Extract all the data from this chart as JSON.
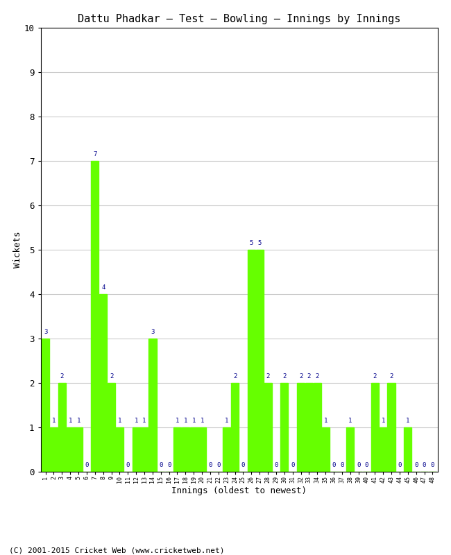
{
  "title": "Dattu Phadkar – Test – Bowling – Innings by Innings",
  "xlabel": "Innings (oldest to newest)",
  "ylabel": "Wickets",
  "ylim": [
    0,
    10
  ],
  "yticks": [
    0,
    1,
    2,
    3,
    4,
    5,
    6,
    7,
    8,
    9,
    10
  ],
  "bar_color": "#66ff00",
  "label_color": "#00008B",
  "footer": "(C) 2001-2015 Cricket Web (www.cricketweb.net)",
  "innings": [
    1,
    2,
    3,
    4,
    5,
    6,
    7,
    8,
    9,
    10,
    11,
    12,
    13,
    14,
    15,
    16,
    17,
    18,
    19,
    20,
    21,
    22,
    23,
    24,
    25,
    26,
    27,
    28,
    29,
    30,
    31,
    32,
    33,
    34,
    35,
    36,
    37,
    38,
    39,
    40,
    41,
    42,
    43,
    44,
    45,
    46,
    47,
    48
  ],
  "wickets": [
    3,
    1,
    2,
    1,
    1,
    0,
    7,
    4,
    2,
    1,
    0,
    1,
    1,
    3,
    0,
    0,
    1,
    1,
    1,
    1,
    0,
    0,
    1,
    2,
    0,
    5,
    5,
    2,
    0,
    2,
    0,
    2,
    2,
    2,
    1,
    0,
    0,
    1,
    0,
    0,
    2,
    1,
    2,
    0,
    1,
    0,
    0,
    0
  ]
}
